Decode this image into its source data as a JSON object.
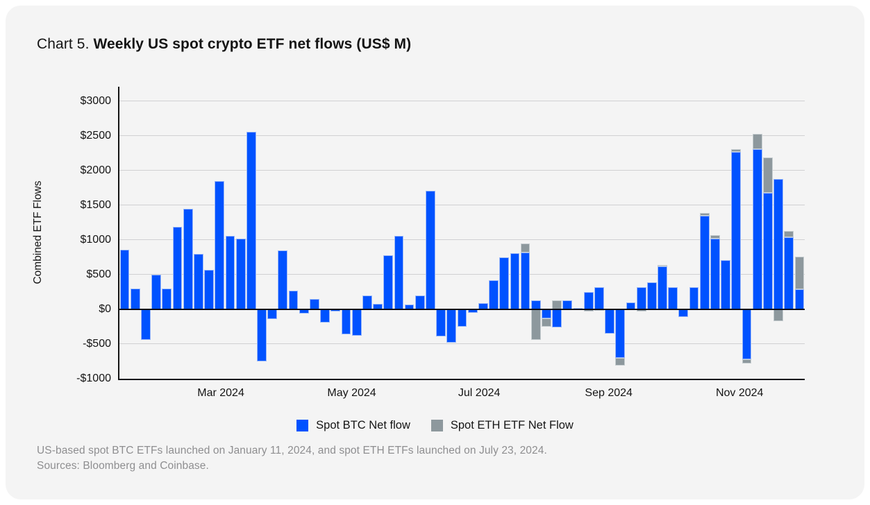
{
  "title": {
    "prefix": "Chart 5. ",
    "main": "Weekly US spot crypto ETF net flows (US$ M)"
  },
  "y_axis": {
    "label": "Combined ETF Flows",
    "ticks": [
      {
        "label": "$3000",
        "value": 3000
      },
      {
        "label": "$2500",
        "value": 2500
      },
      {
        "label": "$2000",
        "value": 2000
      },
      {
        "label": "$1500",
        "value": 1500
      },
      {
        "label": "$1000",
        "value": 1000
      },
      {
        "label": "$500",
        "value": 500
      },
      {
        "label": "$0",
        "value": 0
      },
      {
        "label": "-$500",
        "value": -500
      },
      {
        "label": "-$1000",
        "value": -1000
      }
    ]
  },
  "x_axis": {
    "ticks": [
      {
        "label": "Mar 2024",
        "pos": 0.15
      },
      {
        "label": "May 2024",
        "pos": 0.341
      },
      {
        "label": "Jul 2024",
        "pos": 0.527
      },
      {
        "label": "Sep 2024",
        "pos": 0.716
      },
      {
        "label": "Nov 2024",
        "pos": 0.907
      }
    ]
  },
  "legend": {
    "items": [
      {
        "label": "Spot BTC Net flow",
        "color": "#0052ff"
      },
      {
        "label": "Spot ETH ETF Net Flow",
        "color": "#8d989d"
      }
    ]
  },
  "footnote": {
    "line1": "US-based spot BTC ETFs launched on January 11, 2024, and spot ETH ETFs launched on July 23, 2024.",
    "line2": "Sources: Bloomberg and Coinbase."
  },
  "colors": {
    "btc": "#0052ff",
    "eth": "#8d989d",
    "grid": "#d0d0d2",
    "zero_line": "#0c0c16",
    "card_bg": "#f4f4f4"
  },
  "chart_data": {
    "type": "bar",
    "stacked": true,
    "title": "Weekly US spot crypto ETF net flows (US$ M)",
    "xlabel": "",
    "ylabel": "Combined ETF Flows",
    "ylim": [
      -1000,
      3205
    ],
    "grid": true,
    "legend_position": "bottom",
    "x_unit": "weekly bars, Jan 2024 - Dec 2024",
    "series": [
      {
        "name": "Spot BTC Net flow",
        "color": "#0052ff",
        "values": [
          860,
          300,
          -440,
          500,
          300,
          1190,
          1450,
          800,
          570,
          1850,
          1060,
          1020,
          2560,
          -750,
          -140,
          850,
          270,
          -60,
          150,
          -190,
          -35,
          -360,
          -380,
          200,
          80,
          780,
          1060,
          70,
          200,
          1710,
          -390,
          -480,
          -250,
          -50,
          90,
          420,
          750,
          810,
          820,
          130,
          -130,
          -260,
          130,
          20,
          250,
          320,
          -350,
          -700,
          100,
          320,
          390,
          615,
          320,
          -110,
          320,
          1350,
          1020,
          710,
          2270,
          -720,
          2310,
          1680,
          1880,
          1040,
          290
        ]
      },
      {
        "name": "Spot ETH ETF Net Flow",
        "color": "#8d989d",
        "values": [
          0,
          0,
          0,
          0,
          0,
          0,
          0,
          0,
          0,
          0,
          0,
          0,
          0,
          0,
          0,
          0,
          0,
          0,
          0,
          0,
          0,
          0,
          0,
          0,
          0,
          0,
          0,
          0,
          0,
          0,
          0,
          0,
          0,
          0,
          0,
          0,
          0,
          0,
          130,
          -440,
          -120,
          130,
          0,
          0,
          -35,
          -20,
          0,
          -110,
          0,
          -30,
          0,
          25,
          0,
          0,
          0,
          40,
          50,
          0,
          40,
          -60,
          220,
          510,
          -170,
          90,
          470
        ]
      }
    ]
  }
}
